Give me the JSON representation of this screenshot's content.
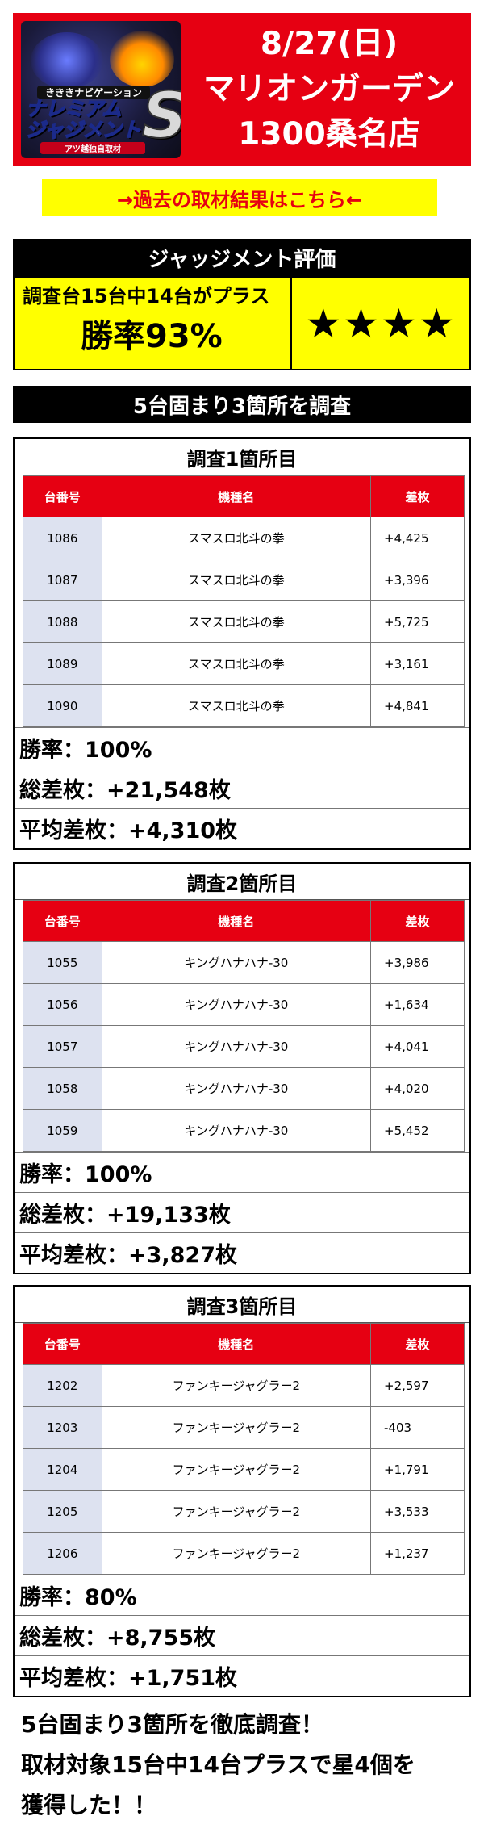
{
  "header": {
    "date": "8/27(日)",
    "store_line1": "マリオンガーデン",
    "store_line2": "1300桑名店",
    "logo": {
      "tagline": "きききナビゲーション",
      "wordmark_line1": "ナレミアム",
      "wordmark_line2": "ジャジメント",
      "big_letter": "S",
      "subline": "アツ越独自取材"
    }
  },
  "link": {
    "label": "→過去の取材結果はこちら←"
  },
  "judgment": {
    "title": "ジャッジメント評価",
    "summary": "調査台15台中14台がプラス",
    "win_rate": "勝率93%",
    "stars": "★★★★"
  },
  "survey_header": "5台固まり3箇所を調査",
  "columns": {
    "num": "台番号",
    "name": "機種名",
    "diff": "差枚"
  },
  "surveys": [
    {
      "title": "調査1箇所目",
      "rows": [
        {
          "num": "1086",
          "name": "スマスロ北斗の拳",
          "diff": "+4,425"
        },
        {
          "num": "1087",
          "name": "スマスロ北斗の拳",
          "diff": "+3,396"
        },
        {
          "num": "1088",
          "name": "スマスロ北斗の拳",
          "diff": "+5,725"
        },
        {
          "num": "1089",
          "name": "スマスロ北斗の拳",
          "diff": "+3,161"
        },
        {
          "num": "1090",
          "name": "スマスロ北斗の拳",
          "diff": "+4,841"
        }
      ],
      "win_rate": "勝率：100%",
      "total": "総差枚：+21,548枚",
      "average": "平均差枚：+4,310枚"
    },
    {
      "title": "調査2箇所目",
      "rows": [
        {
          "num": "1055",
          "name": "キングハナハナ‐30",
          "diff": "+3,986"
        },
        {
          "num": "1056",
          "name": "キングハナハナ‐30",
          "diff": "+1,634"
        },
        {
          "num": "1057",
          "name": "キングハナハナ‐30",
          "diff": "+4,041"
        },
        {
          "num": "1058",
          "name": "キングハナハナ‐30",
          "diff": "+4,020"
        },
        {
          "num": "1059",
          "name": "キングハナハナ‐30",
          "diff": "+5,452"
        }
      ],
      "win_rate": "勝率：100%",
      "total": "総差枚：+19,133枚",
      "average": "平均差枚：+3,827枚"
    },
    {
      "title": "調査3箇所目",
      "rows": [
        {
          "num": "1202",
          "name": "ファンキージャグラー2",
          "diff": "+2,597"
        },
        {
          "num": "1203",
          "name": "ファンキージャグラー2",
          "diff": "-403"
        },
        {
          "num": "1204",
          "name": "ファンキージャグラー2",
          "diff": "+1,791"
        },
        {
          "num": "1205",
          "name": "ファンキージャグラー2",
          "diff": "+3,533"
        },
        {
          "num": "1206",
          "name": "ファンキージャグラー2",
          "diff": "+1,237"
        }
      ],
      "win_rate": "勝率：80%",
      "total": "総差枚：+8,755枚",
      "average": "平均差枚：+1,751枚"
    }
  ],
  "summary": {
    "line1": "5台固まり3箇所を徹底調査！",
    "line2": "取材対象15台中14台プラスで星4個を",
    "line3": "獲得した！！"
  },
  "colors": {
    "header_red": "#e60012",
    "link_yellow": "#ffff00",
    "link_text_red": "#e60012",
    "number_cell_blue": "#dde2f0"
  }
}
